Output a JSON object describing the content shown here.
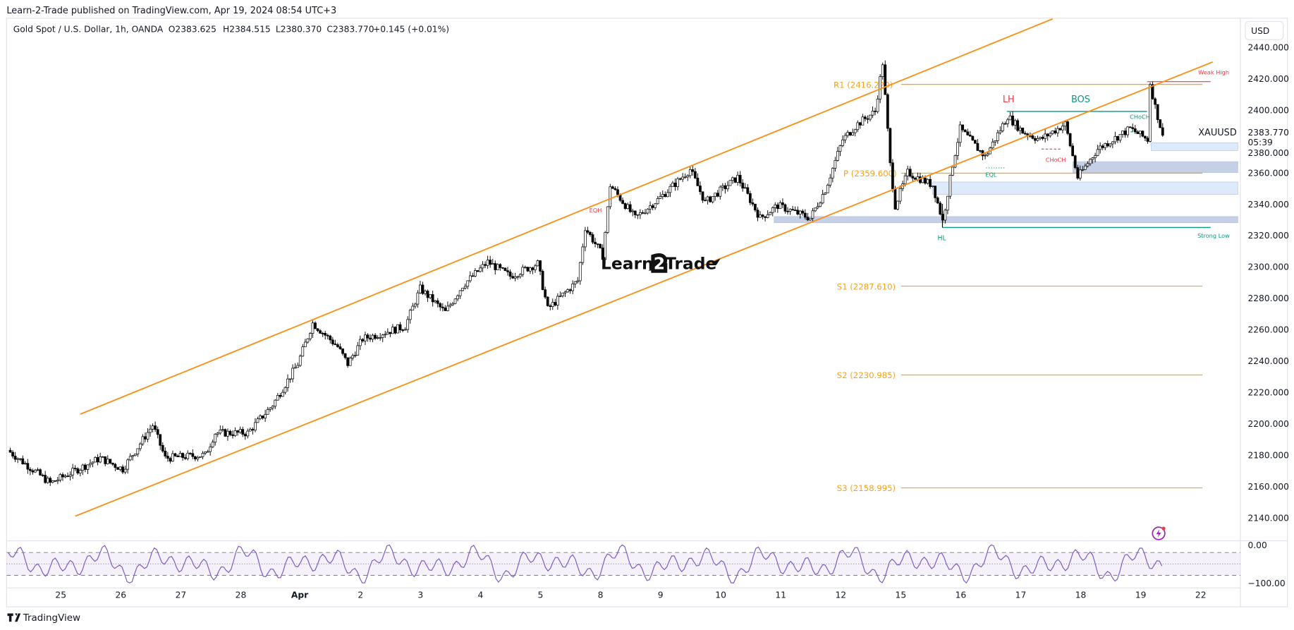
{
  "header": {
    "published": "Learn-2-Trade published on TradingView.com, Apr 19, 2024 08:54 UTC+3",
    "symbol_line": "Gold Spot / U.S. Dollar, 1h, OANDA",
    "open": "O2383.625",
    "high": "H2384.515",
    "low": "L2380.370",
    "close": "C2383.770",
    "change": "+0.145 (+0.01%)"
  },
  "currency_button": "USD",
  "watermark": "Learn2Trade",
  "footer_logo": "TradingView",
  "colors": {
    "channel": "#f7931a",
    "pivot": "#f7a21b",
    "bull_candle": "#ffffff",
    "bear_candle": "#000000",
    "structure_green": "#089981",
    "structure_red": "#f23645",
    "zone_light": "#ddeafb",
    "zone_dark": "#c5cfe6",
    "oscillator": "#7e57c2"
  },
  "chart_data": {
    "type": "candlestick",
    "symbol": "XAUUSD",
    "timeframe": "1h",
    "last_price": "2383.770",
    "countdown": "05:39",
    "ylim": [
      2130,
      2450
    ],
    "y_ticks": [
      "2440.000",
      "2420.000",
      "2400.000",
      "2380.000",
      "2360.000",
      "2340.000",
      "2320.000",
      "2300.000",
      "2280.000",
      "2260.000",
      "2240.000",
      "2220.000",
      "2200.000",
      "2180.000",
      "2160.000",
      "2140.000"
    ],
    "x_ticks": [
      "25",
      "26",
      "27",
      "28",
      "Apr",
      "2",
      "3",
      "4",
      "5",
      "8",
      "9",
      "10",
      "11",
      "12",
      "15",
      "16",
      "17",
      "18",
      "19",
      "22"
    ],
    "trading_days": [
      "2024-03-22",
      "2024-03-25",
      "2024-03-26",
      "2024-03-27",
      "2024-03-28",
      "2024-04-01",
      "2024-04-02",
      "2024-04-03",
      "2024-04-04",
      "2024-04-05",
      "2024-04-08",
      "2024-04-09",
      "2024-04-10",
      "2024-04-11",
      "2024-04-12",
      "2024-04-15",
      "2024-04-16",
      "2024-04-17",
      "2024-04-18",
      "2024-04-19",
      "2024-04-22"
    ],
    "price_path_approx": [
      [
        "2024-03-22 03:00",
        2183
      ],
      [
        "2024-03-22 20:00",
        2162
      ],
      [
        "2024-03-25 16:00",
        2178
      ],
      [
        "2024-03-26 01:00",
        2171
      ],
      [
        "2024-03-26 13:00",
        2199
      ],
      [
        "2024-03-26 18:00",
        2178
      ],
      [
        "2024-03-27 10:00",
        2180
      ],
      [
        "2024-03-27 14:00",
        2194
      ],
      [
        "2024-03-28 03:00",
        2194
      ],
      [
        "2024-03-28 13:00",
        2212
      ],
      [
        "2024-03-28 23:00",
        2238
      ],
      [
        "2024-04-01 05:00",
        2264
      ],
      [
        "2024-04-01 15:00",
        2249
      ],
      [
        "2024-04-01 19:00",
        2238
      ],
      [
        "2024-04-02 01:00",
        2254
      ],
      [
        "2024-04-02 18:00",
        2262
      ],
      [
        "2024-04-03 00:00",
        2286
      ],
      [
        "2024-04-03 10:00",
        2271
      ],
      [
        "2024-04-03 17:00",
        2288
      ],
      [
        "2024-04-04 03:00",
        2303
      ],
      [
        "2024-04-04 12:00",
        2294
      ],
      [
        "2024-04-04 23:00",
        2302
      ],
      [
        "2024-04-05 03:00",
        2273
      ],
      [
        "2024-04-05 15:00",
        2291
      ],
      [
        "2024-04-05 18:00",
        2325
      ],
      [
        "2024-04-08 01:00",
        2307
      ],
      [
        "2024-04-08 04:00",
        2352
      ],
      [
        "2024-04-08 14:00",
        2331
      ],
      [
        "2024-04-09 00:00",
        2344
      ],
      [
        "2024-04-09 12:00",
        2362
      ],
      [
        "2024-04-09 18:00",
        2341
      ],
      [
        "2024-04-10 07:00",
        2357
      ],
      [
        "2024-04-10 16:00",
        2331
      ],
      [
        "2024-04-10 23:00",
        2339
      ],
      [
        "2024-04-11 12:00",
        2331
      ],
      [
        "2024-04-11 18:00",
        2349
      ],
      [
        "2024-04-12 01:00",
        2381
      ],
      [
        "2024-04-12 07:00",
        2391
      ],
      [
        "2024-04-12 14:00",
        2399
      ],
      [
        "2024-04-12 17:00",
        2430
      ],
      [
        "2024-04-12 20:00",
        2365
      ],
      [
        "2024-04-12 22:00",
        2339
      ],
      [
        "2024-04-15 03:00",
        2360
      ],
      [
        "2024-04-15 13:00",
        2352
      ],
      [
        "2024-04-15 17:00",
        2329
      ],
      [
        "2024-04-15 21:00",
        2365
      ],
      [
        "2024-04-16 00:00",
        2388
      ],
      [
        "2024-04-16 10:00",
        2370
      ],
      [
        "2024-04-16 19:00",
        2396
      ],
      [
        "2024-04-17 01:00",
        2386
      ],
      [
        "2024-04-17 08:00",
        2381
      ],
      [
        "2024-04-17 18:00",
        2391
      ],
      [
        "2024-04-17 23:00",
        2357
      ],
      [
        "2024-04-18 07:00",
        2375
      ],
      [
        "2024-04-18 20:00",
        2388
      ],
      [
        "2024-04-19 03:00",
        2381
      ],
      [
        "2024-04-19 04:00",
        2417
      ],
      [
        "2024-04-19 06:00",
        2402
      ],
      [
        "2024-04-19 09:00",
        2383.77
      ]
    ],
    "channel": {
      "upper": [
        [
          "2024-03-25 08:00",
          2206
        ],
        [
          "2024-04-17 13:00",
          2458
        ]
      ],
      "lower": [
        [
          "2024-03-25 06:00",
          2141
        ],
        [
          "2024-04-22 05:00",
          2430.5
        ]
      ]
    },
    "pivots": [
      {
        "label": "R1 (2416.220)",
        "value": 2416.22
      },
      {
        "label": "P (2359.600)",
        "value": 2359.6
      },
      {
        "label": "S1 (2287.610)",
        "value": 2287.61
      },
      {
        "label": "S2 (2230.985)",
        "value": 2230.985
      },
      {
        "label": "S3 (2158.995)",
        "value": 2158.995
      }
    ],
    "annotations": [
      {
        "text": "LH",
        "color": "red"
      },
      {
        "text": "BOS",
        "color": "green"
      },
      {
        "text": "CHoCH",
        "color": "green"
      },
      {
        "text": "CHoCH",
        "color": "red"
      },
      {
        "text": "EQL",
        "color": "green"
      },
      {
        "text": "EQH",
        "color": "red"
      },
      {
        "text": "HL",
        "color": "green"
      },
      {
        "text": "Weak High",
        "color": "red"
      },
      {
        "text": "Strong Low",
        "color": "green"
      }
    ],
    "oscillator": {
      "ylim": [
        -100,
        0
      ],
      "labels": [
        "0.00",
        "−100.00"
      ],
      "levels": [
        -20,
        -50,
        -80
      ]
    }
  }
}
